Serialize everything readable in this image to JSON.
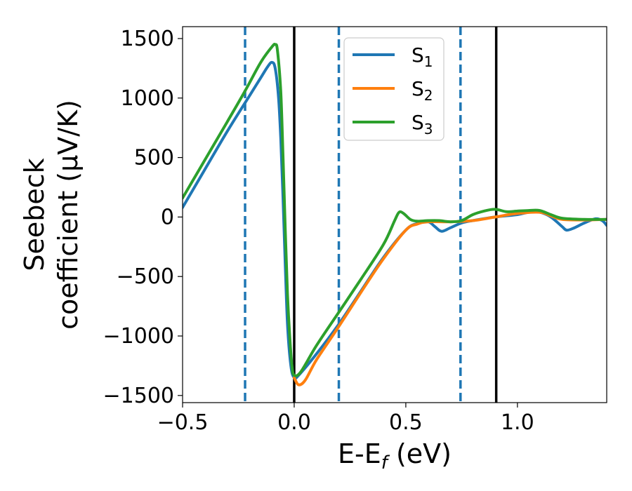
{
  "chart_data": {
    "type": "line",
    "xlabel": "E-E",
    "xlabel_sub": "f",
    "xlabel_unit": " (eV)",
    "ylabel_line1": "Seebeck",
    "ylabel_line2": "coefficient  (μV/K)",
    "xlim": [
      -0.5,
      1.4
    ],
    "ylim": [
      -1560,
      1600
    ],
    "xticks": [
      -0.5,
      0.0,
      0.5,
      1.0
    ],
    "xtick_labels": [
      "−0.5",
      "0.0",
      "0.5",
      "1.0"
    ],
    "yticks": [
      -1500,
      -1000,
      -500,
      0,
      500,
      1000,
      1500
    ],
    "ytick_labels": [
      "−1500",
      "−1000",
      "−500",
      "0",
      "500",
      "1000",
      "1500"
    ],
    "grid": false,
    "legend_placement": "top-center",
    "vlines_solid": [
      0.0,
      0.905
    ],
    "vlines_dashed": [
      -0.22,
      0.2,
      0.745
    ],
    "vline_solid_color": "#000000",
    "vline_dashed_color": "#1f77b4",
    "series": [
      {
        "name": "S",
        "sub": "1",
        "color": "#1f77b4",
        "points": [
          [
            -0.5,
            80
          ],
          [
            -0.4,
            400
          ],
          [
            -0.3,
            720
          ],
          [
            -0.2,
            1020
          ],
          [
            -0.15,
            1170
          ],
          [
            -0.12,
            1260
          ],
          [
            -0.1,
            1300
          ],
          [
            -0.085,
            1250
          ],
          [
            -0.07,
            1000
          ],
          [
            -0.06,
            650
          ],
          [
            -0.05,
            150
          ],
          [
            -0.04,
            -400
          ],
          [
            -0.03,
            -900
          ],
          [
            -0.015,
            -1250
          ],
          [
            0.0,
            -1350
          ],
          [
            0.02,
            -1330
          ],
          [
            0.1,
            -1150
          ],
          [
            0.2,
            -900
          ],
          [
            0.3,
            -620
          ],
          [
            0.4,
            -340
          ],
          [
            0.5,
            -110
          ],
          [
            0.55,
            -55
          ],
          [
            0.6,
            -40
          ],
          [
            0.63,
            -80
          ],
          [
            0.66,
            -120
          ],
          [
            0.7,
            -90
          ],
          [
            0.75,
            -50
          ],
          [
            0.8,
            -30
          ],
          [
            0.9,
            0
          ],
          [
            1.0,
            20
          ],
          [
            1.05,
            40
          ],
          [
            1.1,
            40
          ],
          [
            1.15,
            0
          ],
          [
            1.2,
            -80
          ],
          [
            1.22,
            -110
          ],
          [
            1.25,
            -95
          ],
          [
            1.3,
            -50
          ],
          [
            1.35,
            -15
          ],
          [
            1.38,
            -30
          ],
          [
            1.4,
            -70
          ]
        ]
      },
      {
        "name": "S",
        "sub": "2",
        "color": "#ff7f0e",
        "points": [
          [
            0.0,
            -1350
          ],
          [
            0.02,
            -1410
          ],
          [
            0.05,
            -1370
          ],
          [
            0.1,
            -1200
          ],
          [
            0.2,
            -920
          ],
          [
            0.3,
            -630
          ],
          [
            0.4,
            -350
          ],
          [
            0.5,
            -110
          ],
          [
            0.55,
            -60
          ],
          [
            0.6,
            -40
          ],
          [
            0.7,
            -40
          ],
          [
            0.8,
            -30
          ],
          [
            0.9,
            0
          ],
          [
            1.0,
            30
          ],
          [
            1.1,
            40
          ],
          [
            1.15,
            10
          ],
          [
            1.2,
            -20
          ],
          [
            1.3,
            -25
          ],
          [
            1.4,
            -20
          ]
        ]
      },
      {
        "name": "S",
        "sub": "3",
        "color": "#2ca02c",
        "points": [
          [
            -0.5,
            160
          ],
          [
            -0.4,
            480
          ],
          [
            -0.3,
            800
          ],
          [
            -0.22,
            1060
          ],
          [
            -0.15,
            1300
          ],
          [
            -0.1,
            1430
          ],
          [
            -0.085,
            1450
          ],
          [
            -0.075,
            1400
          ],
          [
            -0.06,
            1050
          ],
          [
            -0.05,
            500
          ],
          [
            -0.04,
            -100
          ],
          [
            -0.03,
            -650
          ],
          [
            -0.02,
            -1000
          ],
          [
            -0.01,
            -1250
          ],
          [
            0.0,
            -1330
          ],
          [
            0.03,
            -1300
          ],
          [
            0.1,
            -1080
          ],
          [
            0.2,
            -800
          ],
          [
            0.3,
            -520
          ],
          [
            0.4,
            -230
          ],
          [
            0.45,
            -30
          ],
          [
            0.47,
            40
          ],
          [
            0.49,
            30
          ],
          [
            0.52,
            -20
          ],
          [
            0.55,
            -35
          ],
          [
            0.6,
            -30
          ],
          [
            0.65,
            -30
          ],
          [
            0.7,
            -40
          ],
          [
            0.75,
            -30
          ],
          [
            0.8,
            20
          ],
          [
            0.85,
            50
          ],
          [
            0.9,
            65
          ],
          [
            0.95,
            45
          ],
          [
            1.0,
            50
          ],
          [
            1.05,
            55
          ],
          [
            1.1,
            55
          ],
          [
            1.15,
            20
          ],
          [
            1.2,
            -10
          ],
          [
            1.3,
            -20
          ],
          [
            1.4,
            -20
          ]
        ]
      }
    ]
  }
}
